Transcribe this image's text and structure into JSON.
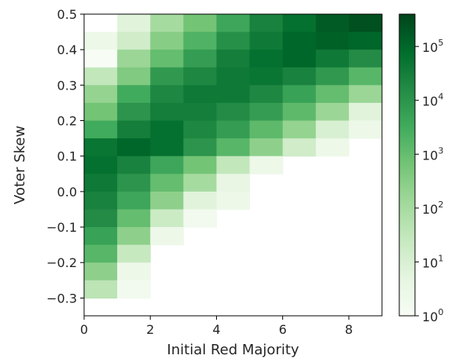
{
  "chart_data": {
    "type": "heatmap",
    "title": "",
    "xlabel": "Initial Red Majority",
    "ylabel": "Voter Skew",
    "xlim": [
      0,
      9
    ],
    "ylim": [
      -0.35,
      0.5
    ],
    "x_ticks": [
      0,
      2,
      4,
      6,
      8
    ],
    "y_ticks": [
      0.5,
      0.4,
      0.3,
      0.2,
      0.1,
      0.0,
      -0.1,
      -0.2,
      -0.3
    ],
    "x_tick_labels": [
      "0",
      "2",
      "4",
      "6",
      "8"
    ],
    "y_tick_labels": [
      "0.5",
      "0.4",
      "0.3",
      "0.2",
      "0.1",
      "0.0",
      "−0.1",
      "−0.2",
      "−0.3"
    ],
    "x_bins": [
      0,
      1,
      2,
      3,
      4,
      5,
      6,
      7,
      8
    ],
    "y_bins": [
      0.45,
      0.4,
      0.35,
      0.3,
      0.25,
      0.2,
      0.15,
      0.1,
      0.05,
      0.0,
      -0.05,
      -0.1,
      -0.15,
      -0.2,
      -0.25,
      -0.3,
      -0.35
    ],
    "bin_width_x": 1,
    "bin_height_y": 0.05,
    "colormap": "Greens",
    "color_scale": "log",
    "colorbar": {
      "min_exponent": 0,
      "max_exponent": 5.6,
      "tick_base": "10",
      "tick_exponents": [
        "5",
        "4",
        "3",
        "2",
        "1",
        "0"
      ]
    },
    "log10_counts": [
      [
        null,
        0.8,
        2.0,
        2.8,
        3.6,
        4.4,
        4.8,
        5.2,
        5.4
      ],
      [
        0.4,
        1.2,
        2.5,
        3.3,
        4.1,
        4.6,
        5.0,
        5.1,
        5.0
      ],
      [
        0.0,
        2.2,
        3.0,
        3.8,
        4.5,
        4.8,
        5.0,
        4.6,
        4.2
      ],
      [
        1.5,
        2.6,
        3.9,
        4.3,
        4.6,
        4.7,
        4.4,
        3.9,
        3.2
      ],
      [
        2.3,
        3.5,
        4.3,
        4.6,
        4.6,
        4.3,
        3.7,
        3.0,
        2.2
      ],
      [
        2.8,
        4.0,
        4.5,
        4.5,
        4.2,
        3.8,
        3.1,
        2.2,
        0.8
      ],
      [
        3.5,
        4.5,
        4.8,
        4.3,
        3.8,
        3.1,
        2.3,
        1.0,
        0.4
      ],
      [
        4.7,
        5.0,
        4.8,
        4.0,
        3.2,
        2.4,
        1.2,
        0.4,
        null
      ],
      [
        4.8,
        4.4,
        3.6,
        2.8,
        1.5,
        0.4,
        null,
        null,
        null
      ],
      [
        4.6,
        4.0,
        3.0,
        2.0,
        0.6,
        null,
        null,
        null,
        null
      ],
      [
        4.4,
        3.6,
        2.4,
        0.8,
        0.4,
        null,
        null,
        null,
        null
      ],
      [
        4.2,
        3.0,
        1.3,
        0.2,
        null,
        null,
        null,
        null,
        null
      ],
      [
        3.7,
        2.4,
        0.4,
        null,
        null,
        null,
        null,
        null,
        null
      ],
      [
        3.2,
        1.4,
        null,
        null,
        null,
        null,
        null,
        null,
        null
      ],
      [
        2.4,
        0.4,
        null,
        null,
        null,
        null,
        null,
        null,
        null
      ],
      [
        1.6,
        0.2,
        null,
        null,
        null,
        null,
        null,
        null,
        null
      ],
      [
        null,
        null,
        null,
        null,
        null,
        null,
        null,
        null,
        null
      ]
    ]
  }
}
